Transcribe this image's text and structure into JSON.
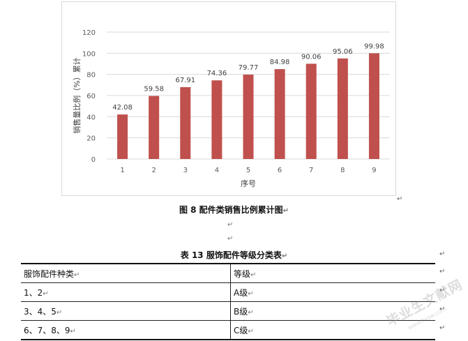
{
  "figure_caption": "图 8   配件类销售比例累计图",
  "table_caption": "表 13    服饰配件等级分类表",
  "return_mark": "↵",
  "chart_data": {
    "type": "bar",
    "title": "",
    "xlabel": "序号",
    "ylabel": "销售量比例（%）累计",
    "categories": [
      "1",
      "2",
      "3",
      "4",
      "5",
      "6",
      "7",
      "8",
      "9"
    ],
    "values": [
      42.08,
      59.58,
      67.91,
      74.36,
      79.77,
      84.98,
      90.06,
      95.06,
      99.98
    ],
    "value_labels": [
      "42.08",
      "59.58",
      "67.91",
      "74.36",
      "79.77",
      "84.98",
      "90.06",
      "95.06",
      "99.98"
    ],
    "yticks": [
      "0",
      "20",
      "40",
      "60",
      "80",
      "100",
      "120"
    ],
    "ylim": [
      0,
      120
    ],
    "grid": true,
    "bar_color": "#c0504d",
    "gridline_color": "#d9d9d9"
  },
  "table": {
    "header": [
      "服饰配件种类",
      "等级"
    ],
    "rows": [
      [
        "1、2",
        "A级"
      ],
      [
        "3、4、5",
        "B级"
      ],
      [
        "6、7、8、9",
        "C级"
      ]
    ]
  },
  "watermark": {
    "text": "毕业生文献网",
    "url": "www.bysw.com"
  }
}
